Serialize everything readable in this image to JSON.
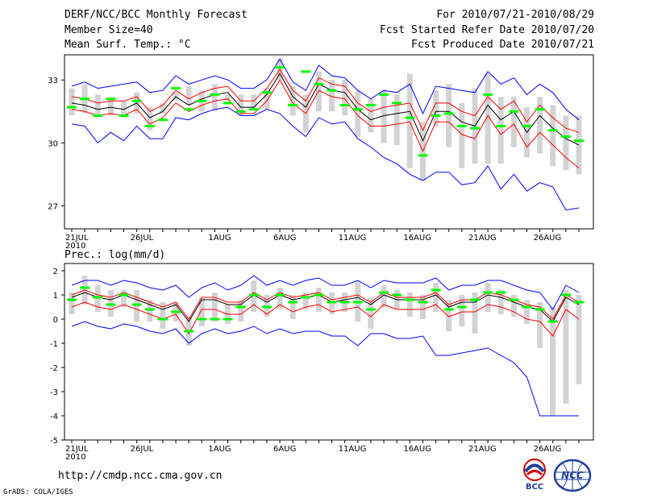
{
  "header": {
    "title": "DERF/NCC/BCC Monthly Forecast",
    "member": "Member Size=40",
    "variable": "Mean Surf. Temp.: °C",
    "period": "For 2010/07/21-2010/08/29",
    "started": "Fcst Started Refer Date 2010/07/20",
    "produced": "Fcst Produced Date 2010/07/21"
  },
  "footer": {
    "url": "http://cmdp.ncc.cma.gov.cn",
    "credit": "GrADS: COLA/IGES",
    "logo_bcc": "BCC",
    "logo_ncc": "NCC"
  },
  "colors": {
    "mean": "#000000",
    "spread": "#ff0000",
    "extreme": "#0000ff",
    "box": "#d3d3d3",
    "median": "#00ff00"
  },
  "chart_data": [
    {
      "type": "line",
      "title": "Mean Surf. Temp.: °C",
      "xlabel": "",
      "ylabel": "",
      "x_ticks": [
        "21JUL",
        "26JUL",
        "1AUG",
        "6AUG",
        "11AUG",
        "16AUG",
        "21AUG",
        "26AUG"
      ],
      "x_tick_days": [
        1,
        6,
        12,
        17,
        22,
        27,
        32,
        37
      ],
      "year_label": "2010",
      "y_ticks": [
        27,
        30,
        33
      ],
      "ylim": [
        25.9,
        34.2
      ],
      "x_days": [
        1,
        2,
        3,
        4,
        5,
        6,
        7,
        8,
        9,
        10,
        11,
        12,
        13,
        14,
        15,
        16,
        17,
        18,
        19,
        20,
        21,
        22,
        23,
        24,
        25,
        26,
        27,
        28,
        29,
        30,
        31,
        32,
        33,
        34,
        35,
        36,
        37,
        38,
        39,
        40
      ],
      "series": [
        {
          "name": "ensemble mean",
          "role": "mean",
          "values": [
            31.9,
            31.8,
            31.6,
            31.7,
            31.6,
            31.9,
            31.2,
            31.5,
            32.2,
            31.8,
            32.1,
            32.3,
            32.4,
            31.7,
            31.7,
            32.3,
            33.3,
            32.2,
            31.7,
            32.8,
            32.5,
            32.4,
            31.6,
            31.1,
            31.3,
            31.4,
            31.5,
            30.1,
            31.5,
            31.5,
            31.0,
            30.8,
            31.8,
            31.1,
            31.5,
            30.5,
            31.3,
            30.7,
            30.2,
            29.9
          ]
        },
        {
          "name": "upper spread",
          "role": "spread",
          "values": [
            32.2,
            32.1,
            31.9,
            32.0,
            32.0,
            32.2,
            31.5,
            31.8,
            32.5,
            32.1,
            32.4,
            32.6,
            32.7,
            32.0,
            32.0,
            32.6,
            33.5,
            32.5,
            32.0,
            33.1,
            32.8,
            32.7,
            31.9,
            31.5,
            31.7,
            31.8,
            31.9,
            30.6,
            31.9,
            31.9,
            31.5,
            31.3,
            32.2,
            31.6,
            32.0,
            31.0,
            31.8,
            31.2,
            30.7,
            30.5
          ]
        },
        {
          "name": "lower spread",
          "role": "spread",
          "values": [
            31.6,
            31.5,
            31.3,
            31.4,
            31.3,
            31.6,
            30.9,
            31.2,
            31.9,
            31.5,
            31.8,
            32.0,
            32.1,
            31.4,
            31.4,
            32.0,
            33.0,
            31.9,
            31.4,
            32.5,
            32.2,
            32.1,
            31.3,
            30.8,
            30.8,
            30.9,
            31.0,
            29.6,
            31.0,
            31.0,
            30.4,
            30.2,
            31.3,
            30.4,
            30.9,
            29.8,
            30.5,
            29.9,
            29.3,
            28.8
          ]
        },
        {
          "name": "ensemble max",
          "role": "extreme",
          "values": [
            32.7,
            32.9,
            32.6,
            32.7,
            32.8,
            32.9,
            32.4,
            32.5,
            33.2,
            32.8,
            33.0,
            33.2,
            33.0,
            32.6,
            32.6,
            33.0,
            34.0,
            32.9,
            32.5,
            33.7,
            33.2,
            33.1,
            32.5,
            32.1,
            32.5,
            32.4,
            32.8,
            31.4,
            32.7,
            32.6,
            32.5,
            32.4,
            33.4,
            32.8,
            33.1,
            32.3,
            32.8,
            32.4,
            31.6,
            31.1
          ]
        },
        {
          "name": "ensemble min",
          "role": "extreme",
          "values": [
            30.9,
            30.8,
            30.0,
            30.5,
            30.1,
            30.8,
            30.2,
            30.2,
            31.2,
            31.1,
            31.4,
            31.6,
            31.7,
            31.3,
            31.3,
            31.6,
            31.4,
            30.8,
            30.3,
            31.2,
            30.9,
            31.0,
            30.2,
            29.8,
            29.3,
            29.0,
            28.5,
            28.2,
            28.6,
            28.6,
            28.0,
            28.1,
            28.9,
            27.8,
            28.5,
            27.7,
            28.1,
            27.9,
            26.8,
            26.9
          ]
        }
      ],
      "median": [
        31.7,
        32.1,
        31.3,
        32.1,
        31.3,
        32.0,
        30.8,
        31.1,
        32.6,
        31.6,
        32.0,
        32.3,
        31.9,
        31.5,
        31.6,
        32.4,
        33.6,
        31.8,
        33.4,
        32.8,
        32.5,
        31.8,
        31.6,
        31.8,
        32.3,
        31.9,
        31.2,
        29.4,
        31.3,
        31.4,
        30.8,
        30.7,
        32.3,
        30.8,
        31.5,
        30.8,
        31.6,
        30.6,
        30.3,
        30.1
      ],
      "box_high": [
        32.6,
        32.8,
        32.3,
        32.1,
        32.0,
        32.4,
        31.7,
        31.9,
        32.4,
        32.7,
        32.5,
        32.8,
        32.3,
        32.3,
        32.3,
        32.6,
        34.0,
        32.7,
        32.3,
        33.4,
        33.0,
        33.0,
        32.5,
        32.1,
        32.5,
        32.3,
        33.3,
        31.0,
        32.5,
        32.8,
        31.9,
        32.6,
        33.3,
        32.2,
        32.2,
        31.7,
        32.2,
        31.8,
        31.3,
        31.3
      ],
      "box_low": [
        31.3,
        31.4,
        31.3,
        31.3,
        31.2,
        31.4,
        30.6,
        31.4,
        32.0,
        31.8,
        31.5,
        31.5,
        32.0,
        31.3,
        31.6,
        31.6,
        33.0,
        31.3,
        30.5,
        31.5,
        31.5,
        31.3,
        30.3,
        30.5,
        30.0,
        29.9,
        28.8,
        28.2,
        30.8,
        29.8,
        28.8,
        29.0,
        29.0,
        29.0,
        29.8,
        29.3,
        29.5,
        28.9,
        28.7,
        28.5
      ]
    },
    {
      "type": "line",
      "title": "Prec.: log(mm/d)",
      "xlabel": "",
      "ylabel": "",
      "x_ticks": [
        "21JUL",
        "26JUL",
        "1AUG",
        "6AUG",
        "11AUG",
        "16AUG",
        "21AUG",
        "26AUG"
      ],
      "x_tick_days": [
        1,
        6,
        12,
        17,
        22,
        27,
        32,
        37
      ],
      "year_label": "2010",
      "y_ticks": [
        -5,
        -4,
        -3,
        -2,
        -1,
        0,
        1,
        2
      ],
      "ylim": [
        -5,
        2.3
      ],
      "x_days": [
        1,
        2,
        3,
        4,
        5,
        6,
        7,
        8,
        9,
        10,
        11,
        12,
        13,
        14,
        15,
        16,
        17,
        18,
        19,
        20,
        21,
        22,
        23,
        24,
        25,
        26,
        27,
        28,
        29,
        30,
        31,
        32,
        33,
        34,
        35,
        36,
        37,
        38,
        39,
        40
      ],
      "series": [
        {
          "name": "ensemble mean",
          "role": "mean",
          "values": [
            0.9,
            1.1,
            0.9,
            0.8,
            1.0,
            0.8,
            0.6,
            0.4,
            0.6,
            -0.1,
            0.8,
            0.8,
            0.6,
            0.6,
            1.0,
            0.7,
            1.0,
            0.8,
            0.9,
            1.0,
            0.7,
            0.8,
            0.9,
            0.6,
            1.0,
            0.8,
            0.8,
            0.8,
            1.0,
            0.5,
            0.7,
            0.7,
            1.0,
            0.9,
            0.7,
            0.5,
            0.4,
            -0.1,
            0.9,
            0.6
          ]
        },
        {
          "name": "upper spread",
          "role": "spread",
          "values": [
            1.0,
            1.2,
            1.0,
            0.9,
            1.1,
            0.9,
            0.7,
            0.5,
            0.7,
            0.0,
            0.9,
            0.9,
            0.7,
            0.7,
            1.1,
            0.8,
            1.1,
            0.9,
            1.0,
            1.1,
            0.8,
            0.9,
            1.0,
            0.7,
            1.1,
            0.9,
            0.9,
            0.9,
            1.1,
            0.6,
            0.8,
            0.8,
            1.1,
            1.0,
            0.8,
            0.6,
            0.5,
            0.0,
            1.0,
            0.7
          ]
        },
        {
          "name": "lower spread",
          "role": "spread",
          "values": [
            0.5,
            0.7,
            0.5,
            0.4,
            0.6,
            0.4,
            0.2,
            0.0,
            0.2,
            -0.6,
            0.4,
            0.4,
            0.2,
            0.2,
            0.6,
            0.2,
            0.6,
            0.3,
            0.5,
            0.6,
            0.3,
            0.4,
            0.5,
            0.1,
            0.6,
            0.4,
            0.4,
            0.4,
            0.6,
            0.1,
            0.3,
            0.3,
            0.6,
            0.5,
            0.3,
            0.0,
            -0.1,
            -0.7,
            0.4,
            0.0
          ]
        },
        {
          "name": "ensemble max",
          "role": "extreme",
          "values": [
            1.4,
            1.6,
            1.6,
            1.4,
            1.6,
            1.5,
            1.3,
            1.2,
            1.4,
            0.9,
            1.3,
            1.5,
            1.2,
            1.4,
            1.8,
            1.4,
            1.6,
            1.4,
            1.6,
            1.7,
            1.4,
            1.4,
            1.6,
            1.3,
            1.6,
            1.5,
            1.5,
            1.5,
            1.7,
            1.2,
            1.4,
            1.4,
            1.6,
            1.6,
            1.4,
            1.2,
            1.1,
            0.4,
            1.4,
            1.1
          ]
        },
        {
          "name": "ensemble min",
          "role": "extreme",
          "values": [
            -0.3,
            -0.1,
            -0.3,
            -0.4,
            -0.2,
            -0.3,
            -0.5,
            -0.6,
            -0.4,
            -1.0,
            -0.6,
            -0.4,
            -0.6,
            -0.5,
            -0.3,
            -0.6,
            -0.4,
            -0.6,
            -0.5,
            -0.5,
            -0.7,
            -0.7,
            -1.1,
            -0.6,
            -0.6,
            -0.8,
            -0.8,
            -0.7,
            -1.5,
            -1.5,
            -1.4,
            -1.3,
            -1.2,
            -1.5,
            -1.8,
            -2.4,
            -4.0,
            -4.0,
            -4.0,
            -4.0
          ]
        }
      ],
      "median": [
        0.8,
        1.3,
        0.9,
        0.6,
        1.0,
        0.6,
        0.4,
        0.0,
        0.3,
        -0.5,
        0.0,
        0.0,
        0.0,
        0.5,
        1.0,
        0.5,
        1.0,
        0.7,
        0.9,
        1.0,
        0.7,
        0.7,
        0.7,
        0.4,
        1.1,
        1.0,
        0.8,
        0.7,
        1.2,
        0.4,
        0.5,
        0.8,
        1.1,
        1.1,
        0.8,
        0.5,
        0.4,
        -0.1,
        1.0,
        0.7
      ],
      "box_high": [
        1.1,
        1.8,
        1.4,
        1.2,
        1.2,
        1.2,
        0.8,
        0.7,
        0.7,
        0.1,
        0.9,
        1.1,
        0.6,
        0.8,
        1.6,
        1.0,
        1.3,
        1.0,
        1.1,
        1.3,
        1.1,
        1.1,
        1.6,
        0.9,
        1.4,
        1.2,
        1.1,
        1.0,
        1.5,
        0.8,
        1.0,
        1.1,
        1.5,
        1.2,
        1.0,
        0.8,
        0.7,
        0.5,
        1.2,
        1.0
      ],
      "box_low": [
        0.2,
        0.6,
        0.3,
        0.1,
        0.5,
        -0.1,
        -0.1,
        -0.4,
        -0.1,
        -1.1,
        -0.3,
        -0.1,
        -0.2,
        -0.1,
        0.3,
        0.1,
        0.4,
        0.0,
        0.4,
        0.3,
        0.2,
        0.3,
        -0.1,
        -0.4,
        0.5,
        0.4,
        0.1,
        0.0,
        0.3,
        -0.5,
        -0.3,
        -0.6,
        0.3,
        0.2,
        0.1,
        -0.2,
        -1.2,
        -4.0,
        -3.5,
        -2.7
      ]
    }
  ]
}
